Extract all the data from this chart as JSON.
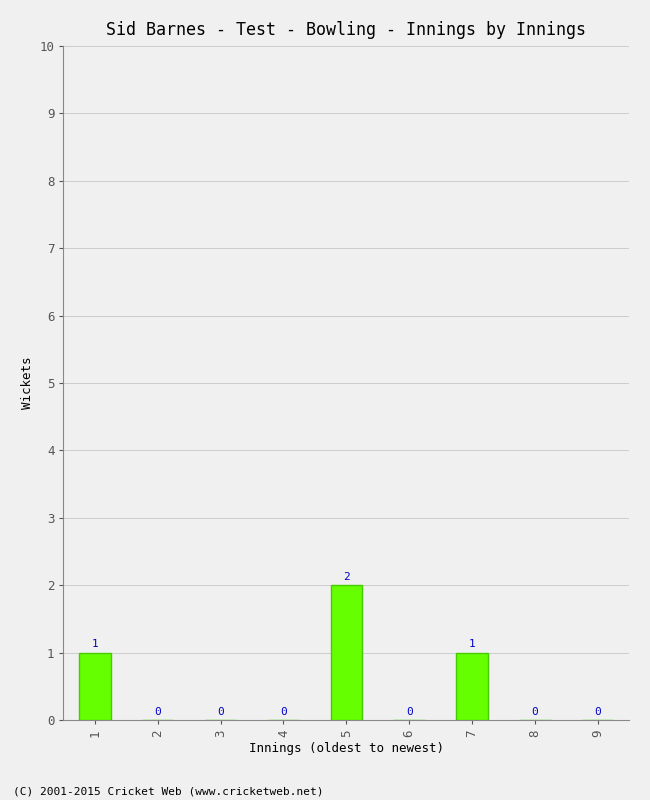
{
  "title": "Sid Barnes - Test - Bowling - Innings by Innings",
  "xlabel": "Innings (oldest to newest)",
  "ylabel": "Wickets",
  "categories": [
    "1",
    "2",
    "3",
    "4",
    "5",
    "6",
    "7",
    "8",
    "9"
  ],
  "values": [
    1,
    0,
    0,
    0,
    2,
    0,
    1,
    0,
    0
  ],
  "bar_color": "#66ff00",
  "bar_edge_color": "#44cc00",
  "label_color": "#0000cc",
  "ylim": [
    0,
    10
  ],
  "yticks": [
    0,
    1,
    2,
    3,
    4,
    5,
    6,
    7,
    8,
    9,
    10
  ],
  "background_color": "#f0f0f0",
  "plot_bg_color": "#f0f0f0",
  "grid_color": "#cccccc",
  "title_fontsize": 12,
  "label_fontsize": 9,
  "tick_fontsize": 9,
  "annotation_fontsize": 8,
  "footer": "(C) 2001-2015 Cricket Web (www.cricketweb.net)",
  "footer_fontsize": 8
}
